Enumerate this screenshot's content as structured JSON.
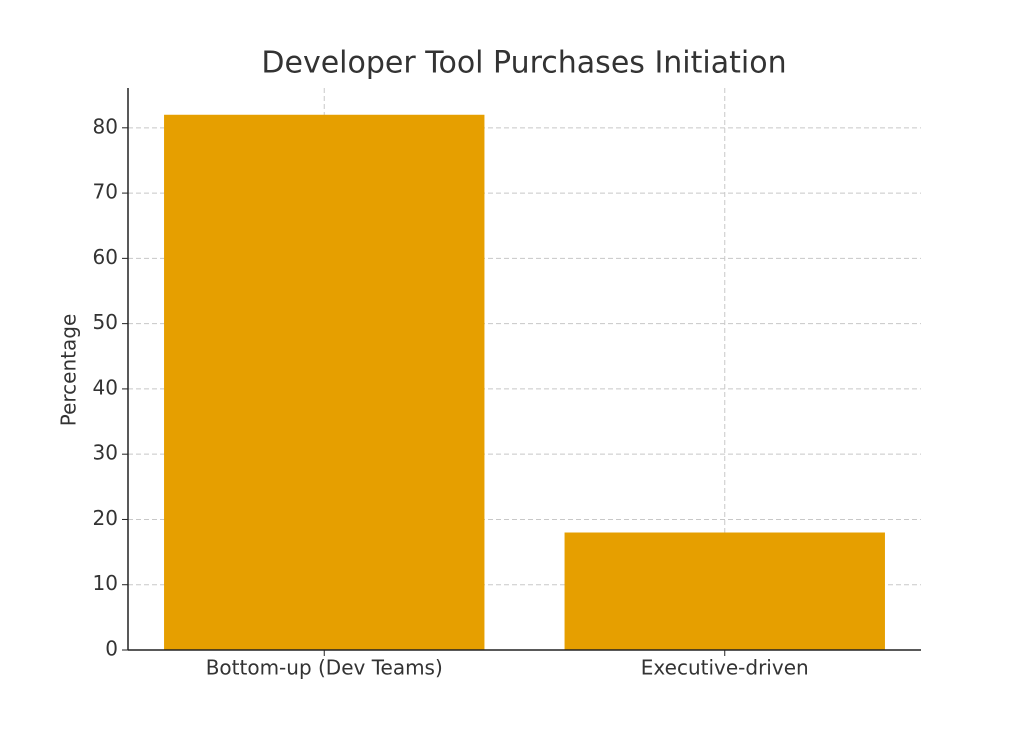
{
  "chart_data": {
    "type": "bar",
    "title": "Developer Tool Purchases Initiation",
    "y_label": "Percentage",
    "categories": [
      "Bottom-up (Dev Teams)",
      "Executive-driven"
    ],
    "values": [
      82,
      18
    ],
    "color": "#e69f00",
    "ylim": [
      0,
      86.1
    ],
    "yticks": [
      0,
      10,
      20,
      30,
      40,
      50,
      60,
      70,
      80
    ],
    "grid": true
  }
}
